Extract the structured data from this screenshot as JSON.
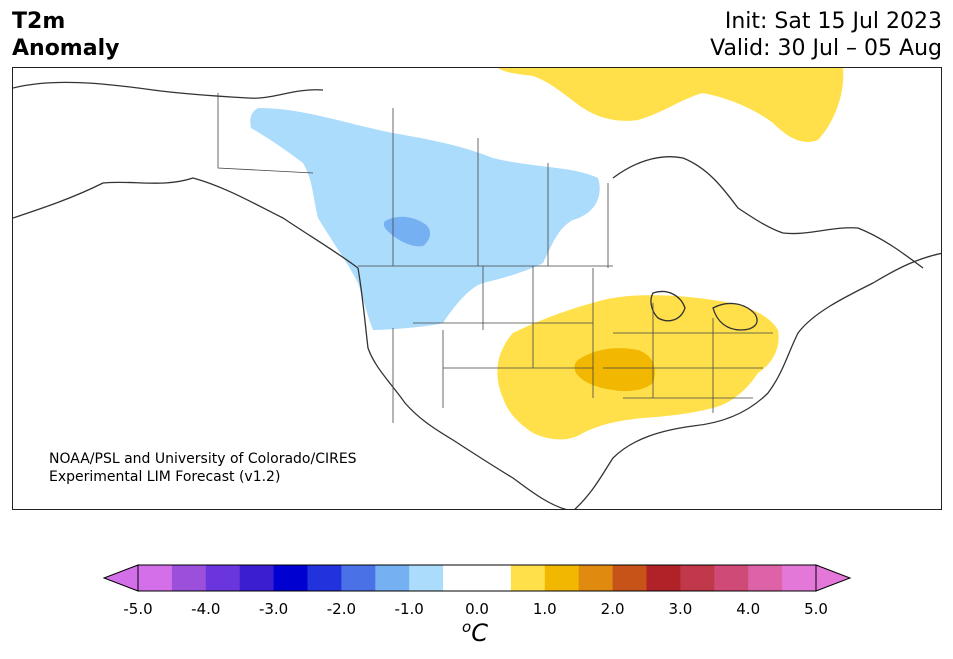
{
  "header": {
    "title_line1": "T2m",
    "title_line2": "Anomaly",
    "init": "Init: Sat 15 Jul 2023",
    "valid": "Valid: 30 Jul – 05 Aug"
  },
  "credit": {
    "line1": "NOAA/PSL and University of Colorado/CIRES",
    "line2": "Experimental LIM Forecast (v1.2)"
  },
  "colorbar": {
    "unit_base": "C",
    "unit_sup": "o",
    "ticks": [
      "-5.0",
      "-4.0",
      "-3.0",
      "-2.0",
      "-1.0",
      "0.0",
      "1.0",
      "2.0",
      "3.0",
      "4.0",
      "5.0"
    ],
    "colors": [
      "#d36fe8",
      "#9b4fdb",
      "#6a35dd",
      "#3a1ed0",
      "#0000d0",
      "#2233dd",
      "#4a72e6",
      "#75b1f2",
      "#acdcfb",
      "#ffffff",
      "#ffffff",
      "#ffe04a",
      "#f2b700",
      "#e08a10",
      "#c85318",
      "#b02228",
      "#c0384a",
      "#d04a78",
      "#dd62a8",
      "#e378d8"
    ],
    "under_color": "#d36fe8",
    "over_color": "#e378d8"
  },
  "map": {
    "regions": {
      "cold_light": "#acdcfb",
      "cold_mid": "#75b1f2",
      "warm_light": "#ffe04a",
      "warm_mid": "#f2b700"
    }
  }
}
